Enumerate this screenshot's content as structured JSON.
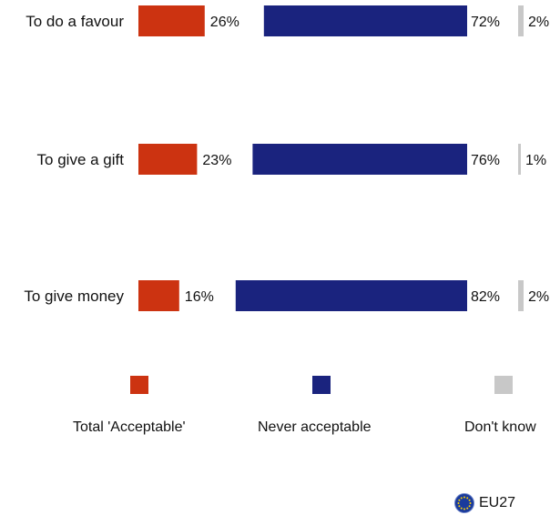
{
  "chart_data": {
    "type": "bar",
    "orientation": "horizontal",
    "stacked": false,
    "categories": [
      "To do a favour",
      "To give a gift",
      "To give money"
    ],
    "series": [
      {
        "name": "Total 'Acceptable'",
        "values": [
          26,
          23,
          16
        ],
        "labels": [
          "26%",
          "23%",
          "16%"
        ],
        "color": "#cc3311"
      },
      {
        "name": "Never acceptable",
        "values": [
          72,
          76,
          82
        ],
        "labels": [
          "72%",
          "76%",
          "82%"
        ],
        "color": "#1a237e"
      },
      {
        "name": "Don't know",
        "values": [
          2,
          1,
          2
        ],
        "labels": [
          "2%",
          "1%",
          "2%"
        ],
        "color": "#c8c8c8"
      }
    ],
    "unit": "%",
    "legend_position": "bottom"
  },
  "footer": {
    "region_label": "EU27",
    "flag_icon": "eu-flag-icon"
  }
}
